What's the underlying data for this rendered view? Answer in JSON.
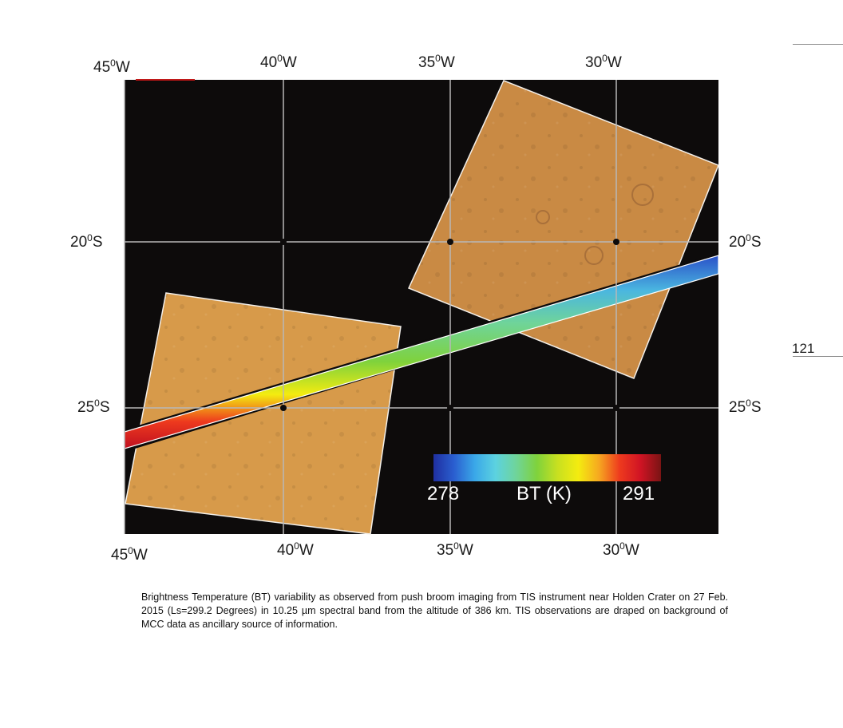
{
  "page": {
    "page_number": "121",
    "caption": "Brightness Temperature (BT) variability  as observed from  push broom imaging  from TIS instrument  near Holden Crater on 27 Feb. 2015 (Ls=299.2 Degrees) in 10.25 µm spectral band from the altitude of 386 km. TIS observations are draped on background of MCC data  as ancillary source  of information."
  },
  "map": {
    "top_lon_labels": [
      {
        "num": "45",
        "deg": "0",
        "hemi": "W"
      },
      {
        "num": "40",
        "deg": "0",
        "hemi": "W"
      },
      {
        "num": "35",
        "deg": "0",
        "hemi": "W"
      },
      {
        "num": "30",
        "deg": "0",
        "hemi": "W"
      }
    ],
    "bottom_lon_labels": [
      {
        "num": "45",
        "deg": "0",
        "hemi": "W"
      },
      {
        "num": "40",
        "deg": "0",
        "hemi": "W"
      },
      {
        "num": "35",
        "deg": "0",
        "hemi": "W"
      },
      {
        "num": "30",
        "deg": "0",
        "hemi": "W"
      }
    ],
    "left_lat_labels": [
      {
        "num": "20",
        "deg": "0",
        "hemi": "S"
      },
      {
        "num": "25",
        "deg": "0",
        "hemi": "S"
      }
    ],
    "right_lat_labels": [
      {
        "num": "20",
        "deg": "0",
        "hemi": "S"
      },
      {
        "num": "25",
        "deg": "0",
        "hemi": "S"
      }
    ],
    "colors": {
      "background": "#0d0b0b",
      "mcc_tile": "#d79a4a",
      "mcc_tile_upper": "#c98a44",
      "grid": "#b8b8b8"
    }
  },
  "colorbar": {
    "min_label": "278",
    "title": "BT (K)",
    "max_label": "291",
    "stops": [
      "#1f2fa0",
      "#2a5fd0",
      "#3aa8e8",
      "#5cd2e0",
      "#6fd49a",
      "#7fd23c",
      "#c8e020",
      "#f4ec10",
      "#f6a820",
      "#ee3a1e",
      "#d01424",
      "#7a1414"
    ]
  }
}
